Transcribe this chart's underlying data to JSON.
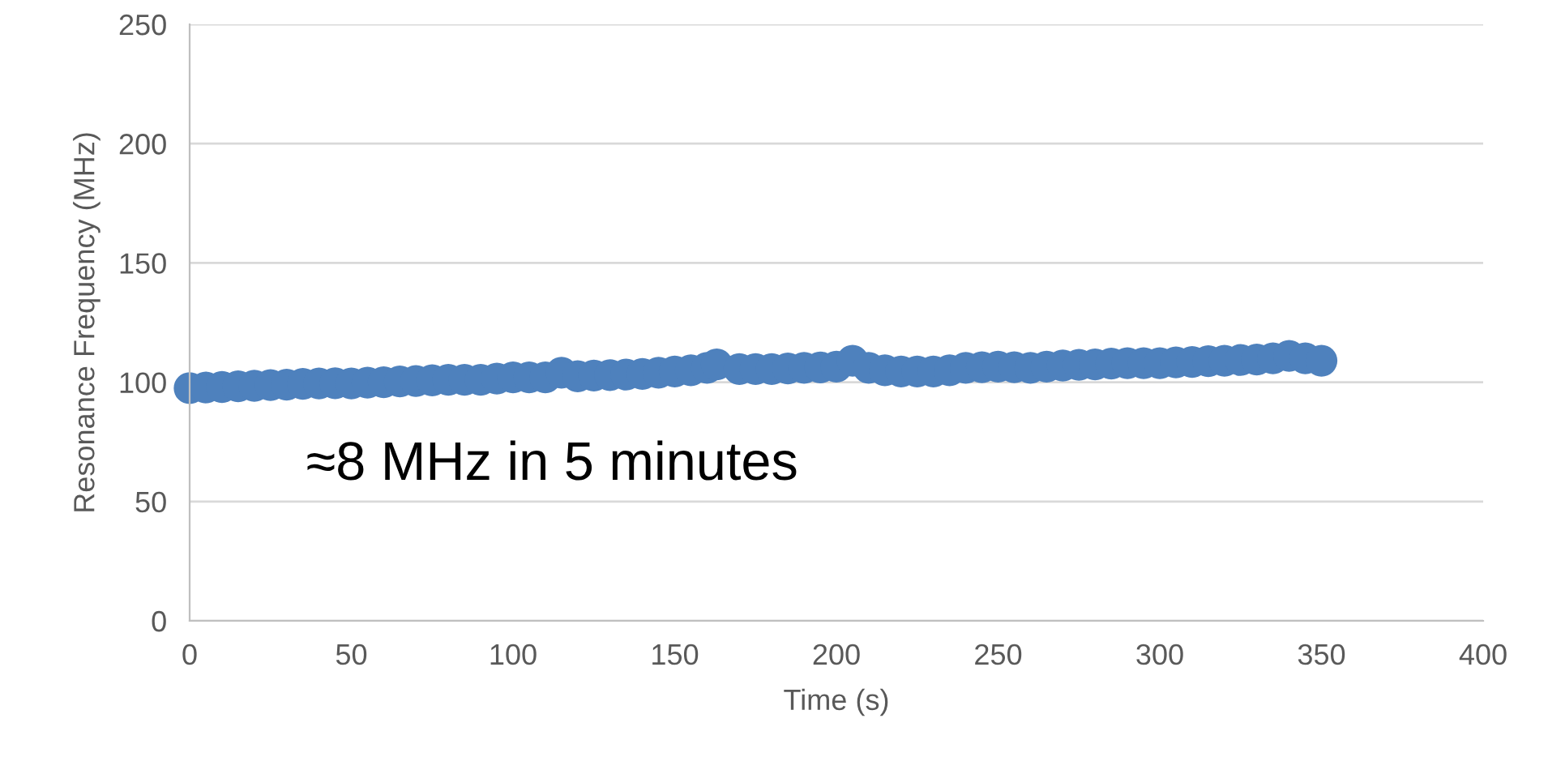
{
  "chart_data": {
    "type": "scatter",
    "xlabel": "Time (s)",
    "ylabel": "Resonance Frequency (MHz)",
    "annotations": [
      "≈8 MHz in 5 minutes"
    ],
    "series": [
      {
        "color": "#4e81bd",
        "x": [
          0,
          5,
          10,
          15,
          20,
          25,
          30,
          35,
          40,
          45,
          50,
          55,
          60,
          65,
          70,
          75,
          80,
          85,
          90,
          95,
          100,
          105,
          110,
          115,
          120,
          125,
          130,
          135,
          140,
          145,
          150,
          155,
          160,
          163,
          170,
          175,
          180,
          185,
          190,
          195,
          200,
          205,
          210,
          215,
          220,
          225,
          230,
          235,
          240,
          245,
          250,
          255,
          260,
          265,
          270,
          275,
          280,
          285,
          290,
          295,
          300,
          305,
          310,
          315,
          320,
          325,
          330,
          335,
          340,
          345,
          350
        ],
        "values": [
          97.5,
          97.8,
          98,
          98.3,
          98.5,
          98.8,
          99,
          99.3,
          99.5,
          99.6,
          99.5,
          99.8,
          100,
          100.3,
          100.5,
          100.8,
          101,
          101,
          101,
          101.5,
          102,
          102,
          102,
          104,
          102.5,
          102.8,
          103,
          103.2,
          103.5,
          104,
          104.5,
          105,
          106,
          107.5,
          105.5,
          105.5,
          105.5,
          105.8,
          106,
          106.2,
          106.5,
          109,
          106,
          105,
          104.5,
          104.5,
          104.5,
          105,
          106,
          106.3,
          106.5,
          106.3,
          106,
          106.5,
          107,
          107.3,
          107.5,
          107.8,
          108,
          108,
          108,
          108.3,
          108.5,
          108.8,
          109,
          109.3,
          109.5,
          110,
          111,
          110,
          109
        ]
      }
    ],
    "marker": "circle",
    "xlim": [
      0,
      400
    ],
    "xticks": [
      0,
      50,
      100,
      150,
      200,
      250,
      300,
      350,
      400
    ],
    "ylim": [
      0,
      250
    ],
    "yticks": [
      0,
      50,
      100,
      150,
      200,
      250
    ],
    "grid": "y",
    "legend": false
  }
}
